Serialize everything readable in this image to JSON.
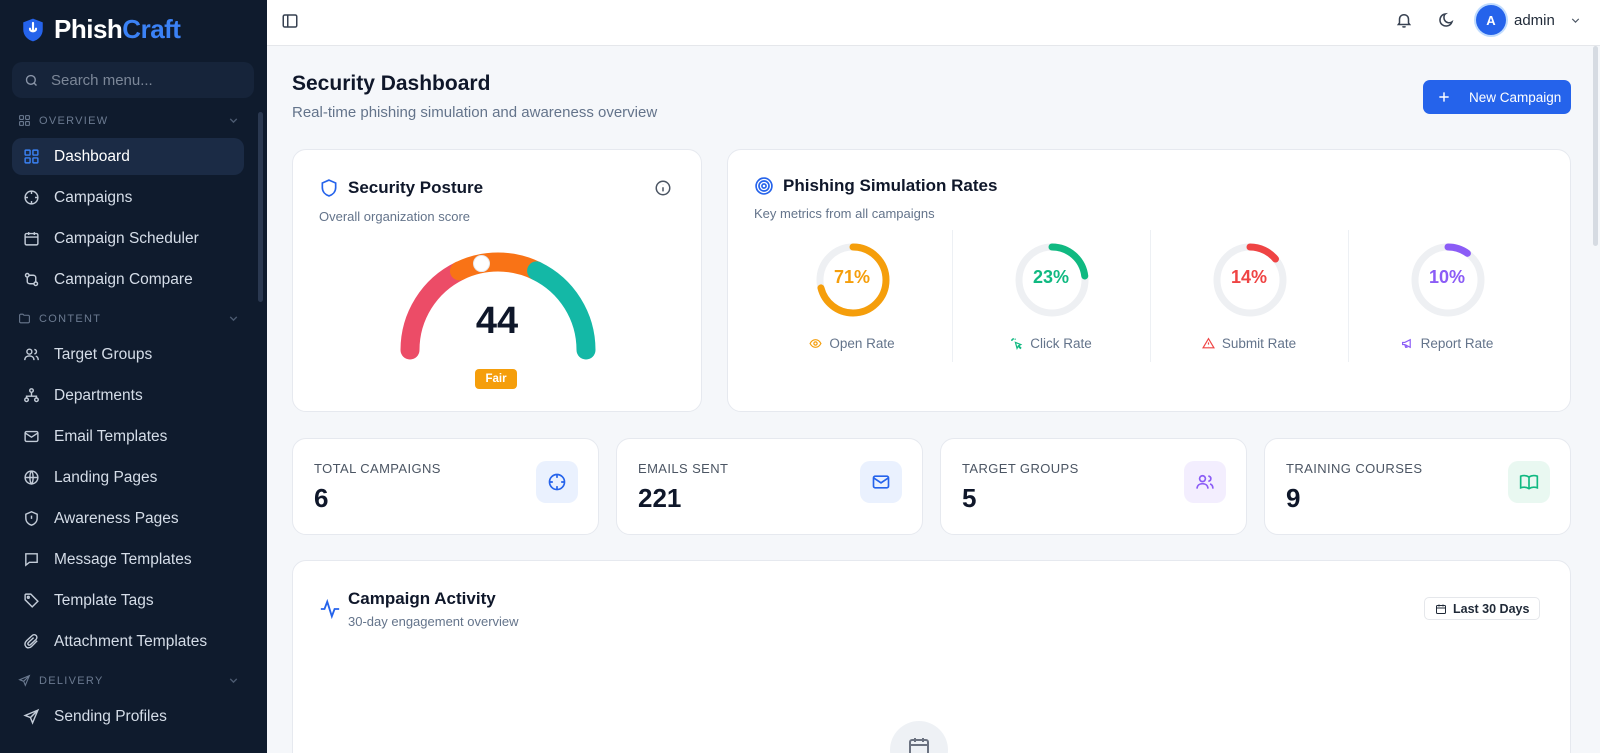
{
  "brand": {
    "name_main": "Phish",
    "name_accent": "Craft"
  },
  "search": {
    "placeholder": "Search menu..."
  },
  "sidebar": {
    "sections": [
      "OVERVIEW",
      "CONTENT",
      "DELIVERY"
    ],
    "items": [
      {
        "label": "Dashboard",
        "icon": "grid-icon",
        "active": true
      },
      {
        "label": "Campaigns",
        "icon": "crosshair-icon"
      },
      {
        "label": "Campaign Scheduler",
        "icon": "calendar-icon"
      },
      {
        "label": "Campaign Compare",
        "icon": "compare-icon"
      },
      {
        "label": "Target Groups",
        "icon": "users-icon"
      },
      {
        "label": "Departments",
        "icon": "hierarchy-icon"
      },
      {
        "label": "Email Templates",
        "icon": "mail-icon"
      },
      {
        "label": "Landing Pages",
        "icon": "globe-icon"
      },
      {
        "label": "Awareness Pages",
        "icon": "shield-icon"
      },
      {
        "label": "Message Templates",
        "icon": "chat-icon"
      },
      {
        "label": "Template Tags",
        "icon": "tag-icon"
      },
      {
        "label": "Attachment Templates",
        "icon": "paperclip-icon"
      },
      {
        "label": "Sending Profiles",
        "icon": "send-icon"
      }
    ]
  },
  "topbar": {
    "user_initial": "A",
    "username": "admin"
  },
  "header": {
    "title": "Security Dashboard",
    "subtitle": "Real-time phishing simulation and awareness overview",
    "new_campaign_label": "New Campaign"
  },
  "posture": {
    "title": "Security Posture",
    "subtitle": "Overall organization score",
    "score": "44",
    "score_value": 44,
    "rating": "Fair"
  },
  "rates": {
    "title": "Phishing Simulation Rates",
    "subtitle": "Key metrics from all campaigns",
    "items": [
      {
        "pct_label": "71%",
        "value": 71,
        "label": "Open Rate",
        "color": "#f59e0b",
        "icon": "eye-icon"
      },
      {
        "pct_label": "23%",
        "value": 23,
        "label": "Click Rate",
        "color": "#10b981",
        "icon": "pointer-click-icon"
      },
      {
        "pct_label": "14%",
        "value": 14,
        "label": "Submit Rate",
        "color": "#ef4444",
        "icon": "alert-triangle-icon"
      },
      {
        "pct_label": "10%",
        "value": 10,
        "label": "Report Rate",
        "color": "#8b5cf6",
        "icon": "megaphone-icon"
      }
    ]
  },
  "stats": [
    {
      "label": "TOTAL CAMPAIGNS",
      "value": "6",
      "icon": "crosshair-icon",
      "bg": "#eaf1fe",
      "color": "#2563eb"
    },
    {
      "label": "EMAILS SENT",
      "value": "221",
      "icon": "mail-icon",
      "bg": "#eaf1fe",
      "color": "#2563eb"
    },
    {
      "label": "TARGET GROUPS",
      "value": "5",
      "icon": "users-icon",
      "bg": "#f3eefe",
      "color": "#8b5cf6"
    },
    {
      "label": "TRAINING COURSES",
      "value": "9",
      "icon": "book-open-icon",
      "bg": "#e9f8f1",
      "color": "#10b981"
    }
  ],
  "activity": {
    "title": "Campaign Activity",
    "subtitle": "30-day engagement overview",
    "range_label": "Last 30 Days"
  },
  "colors": {
    "accent": "#2563eb",
    "sidebar_bg": "#0f1b2d",
    "page_bg": "#f5f7fa"
  }
}
